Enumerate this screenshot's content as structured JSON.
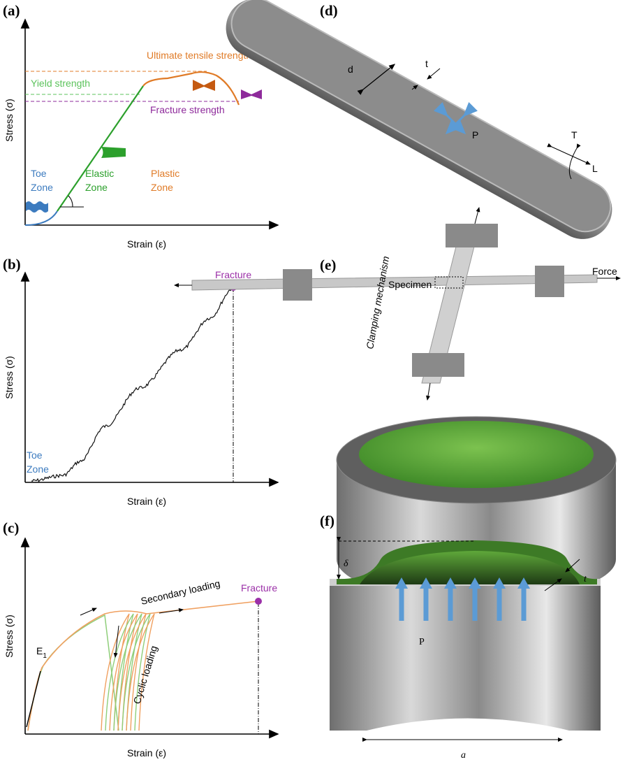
{
  "panel_a": {
    "label": "(a)",
    "y_label": "Stress (σ)",
    "x_label": "Strain (ε)",
    "ultimate": "Ultimate tensile strength",
    "yield": "Yield strength",
    "fracture": "Fracture strength",
    "toe": [
      "Toe",
      "Zone"
    ],
    "elastic": [
      "Elastic",
      "Zone"
    ],
    "plastic": [
      "Plastic",
      "Zone"
    ]
  },
  "panel_b": {
    "label": "(b)",
    "y_label": "Stress (σ)",
    "x_label": "Strain (ε)",
    "fracture": "Fracture",
    "toe": [
      "Toe",
      "Zone"
    ]
  },
  "panel_c": {
    "label": "(c)",
    "y_label": "Stress (σ)",
    "x_label": "Strain (ε)",
    "fracture": "Fracture",
    "secondary": "Secondary loading",
    "cyclic": "Cyclic loading",
    "modulus": "E",
    "modulus_sub": "1"
  },
  "panel_d": {
    "label": "(d)",
    "diameter": "d",
    "thickness": "t",
    "pressure": "P",
    "transverse": "T",
    "longitudinal": "L"
  },
  "panel_e": {
    "label": "(e)",
    "clamp": "Clamping mechanism",
    "specimen": "Specimen",
    "force": "Force"
  },
  "panel_f": {
    "label": "(f)",
    "deflection": "δ",
    "thickness": "t",
    "pressure": "P",
    "radius": "a"
  }
}
